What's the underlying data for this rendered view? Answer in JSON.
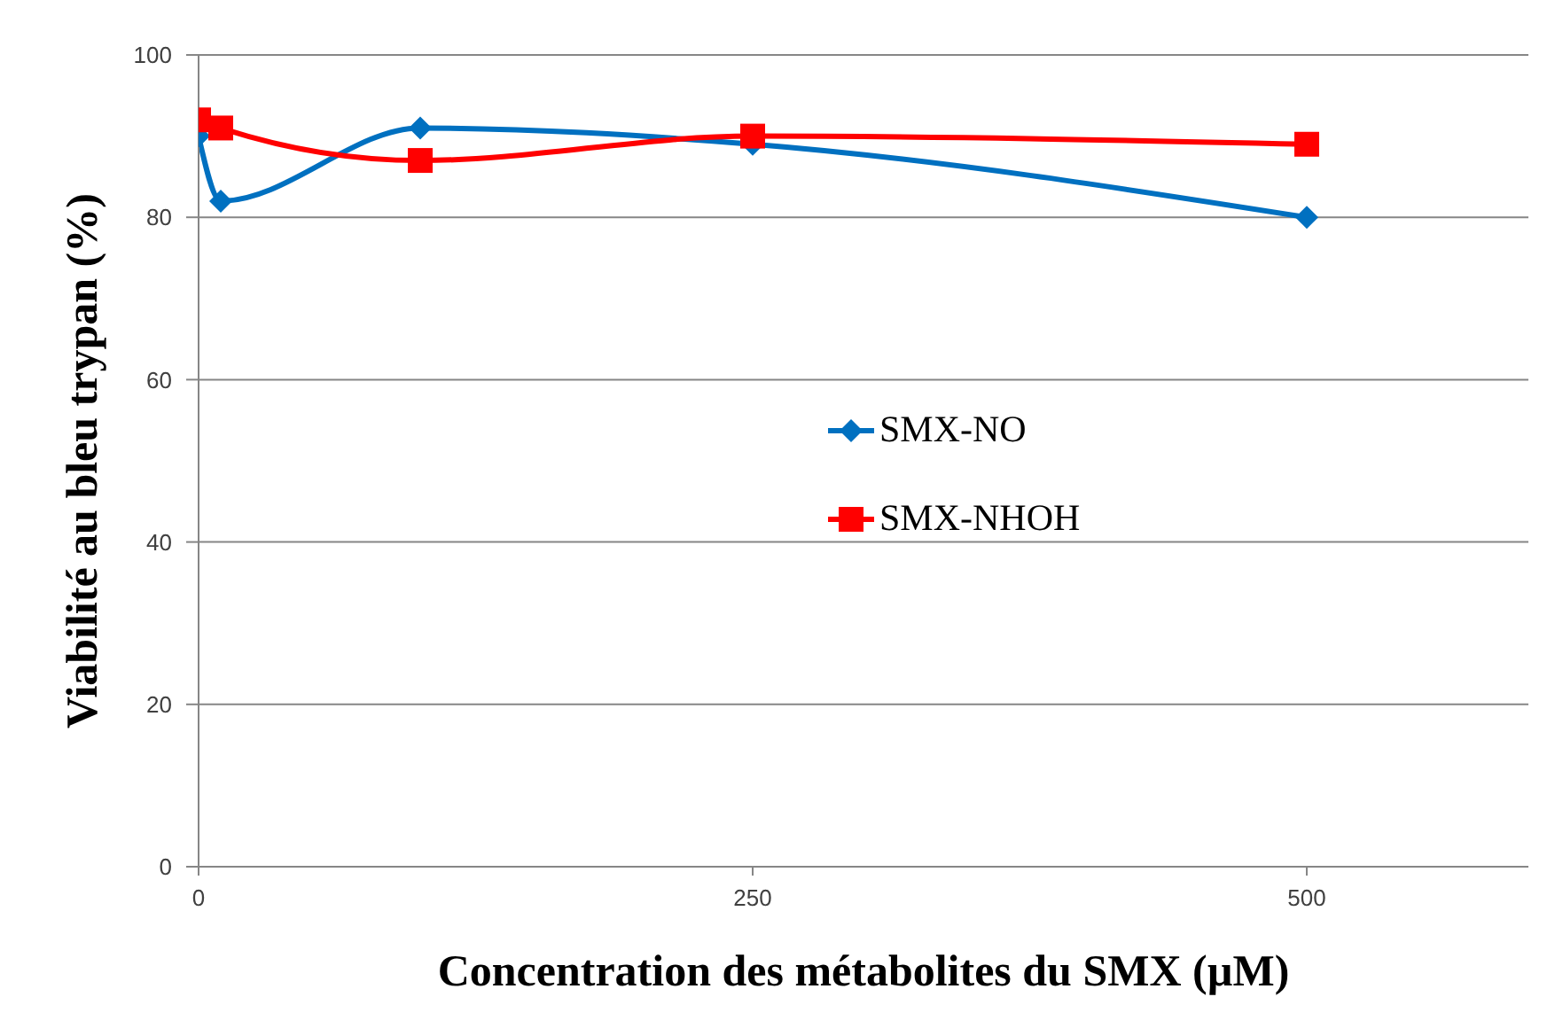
{
  "chart_data": {
    "type": "line",
    "xlabel": "Concentration des métabolites du SMX (µM)",
    "ylabel": "Viabilité au bleu trypan (%)",
    "x": [
      0,
      10,
      100,
      250,
      500
    ],
    "series": [
      {
        "name": "SMX-NO",
        "color": "#0070c0",
        "marker": "diamond",
        "values": [
          90,
          82,
          91,
          89,
          80
        ]
      },
      {
        "name": "SMX-NHOH",
        "color": "#ff0000",
        "marker": "square",
        "values": [
          92,
          91,
          87,
          90,
          89
        ]
      }
    ],
    "xlim": [
      0,
      600
    ],
    "xticks": [
      0,
      250,
      500
    ],
    "ylim": [
      0,
      100
    ],
    "yticks": [
      0,
      20,
      40,
      60,
      80,
      100
    ],
    "grid": "y",
    "legend": "center",
    "line_style": "solid"
  }
}
